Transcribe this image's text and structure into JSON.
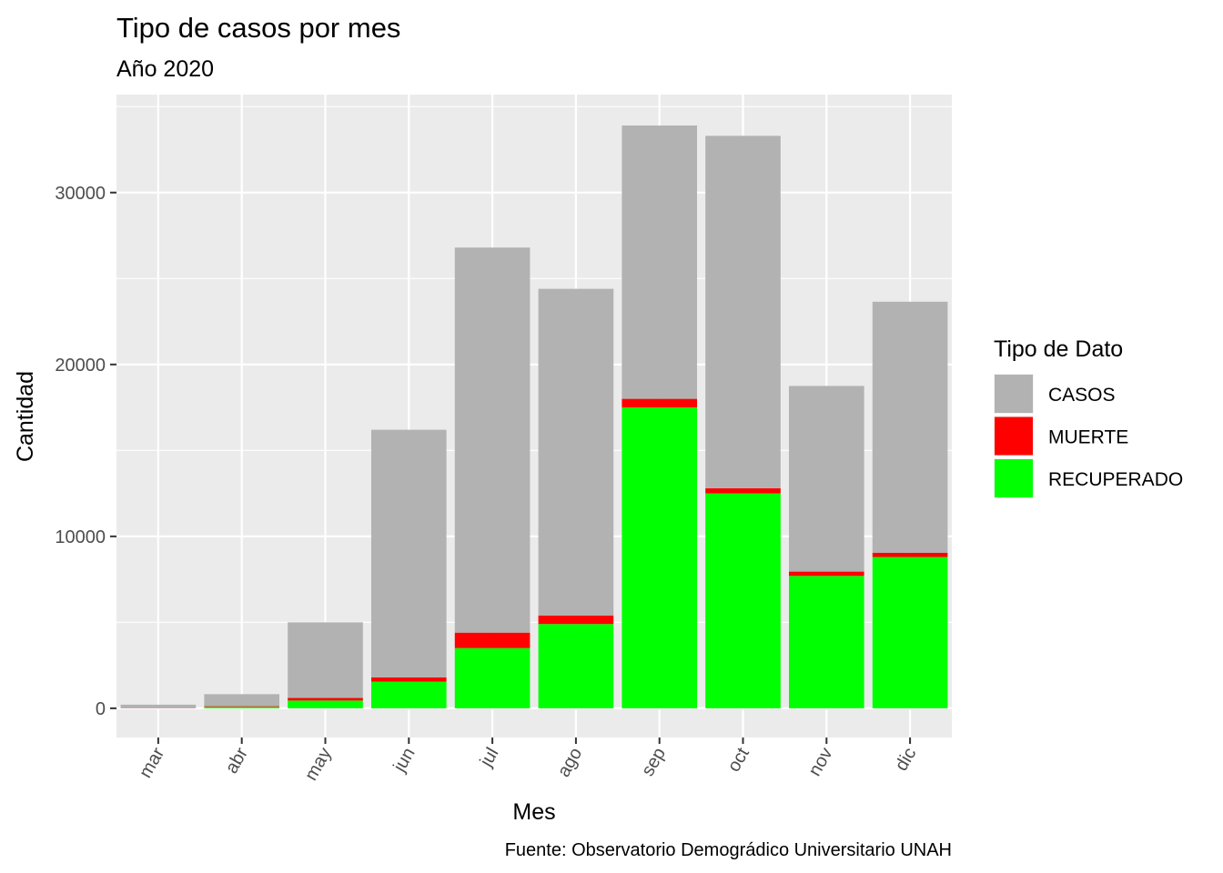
{
  "chart_data": {
    "type": "bar",
    "stacked": true,
    "title": "Tipo de casos por mes",
    "subtitle": "Año 2020",
    "xlabel": "Mes",
    "ylabel": "Cantidad",
    "caption": "Fuente: Observatorio Demográdico Universitario UNAH",
    "categories": [
      "mar",
      "abr",
      "may",
      "jun",
      "jul",
      "ago",
      "sep",
      "oct",
      "nov",
      "dic"
    ],
    "series": [
      {
        "name": "RECUPERADO",
        "color": "#00ff00",
        "values": [
          0,
          80,
          450,
          1550,
          3500,
          4900,
          17500,
          12500,
          7700,
          8800
        ]
      },
      {
        "name": "MUERTE",
        "color": "#ff0000",
        "values": [
          10,
          40,
          150,
          250,
          900,
          500,
          500,
          300,
          250,
          250
        ]
      },
      {
        "name": "CASOS",
        "color": "#b2b2b2",
        "values": [
          200,
          700,
          4400,
          14400,
          22400,
          19000,
          15900,
          20500,
          10800,
          14600
        ]
      }
    ],
    "yticks": [
      0,
      10000,
      20000,
      30000
    ],
    "ylim": [
      -1700,
      35700
    ],
    "grid": true,
    "x_tick_rotation": -60,
    "legend": {
      "title": "Tipo de Dato",
      "position": "right",
      "entries": [
        {
          "label": "CASOS",
          "color": "#b2b2b2"
        },
        {
          "label": "MUERTE",
          "color": "#ff0000"
        },
        {
          "label": "RECUPERADO",
          "color": "#00ff00"
        }
      ]
    },
    "panel_background": "#ebebeb",
    "grid_color": "#ffffff"
  }
}
